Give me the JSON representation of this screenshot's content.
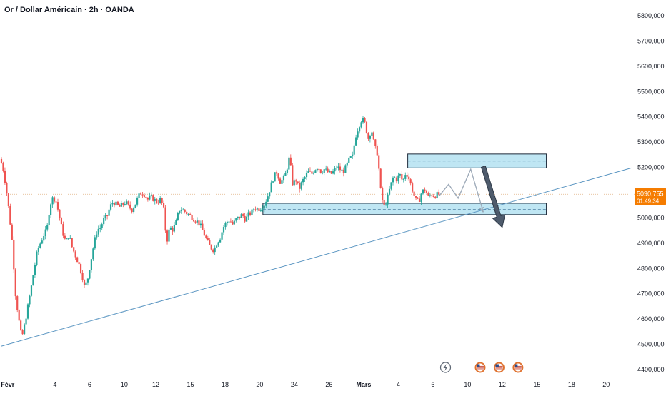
{
  "header": {
    "title": "Or / Dollar Américain · 2h · OANDA"
  },
  "price_label": {
    "value": "5090,755",
    "countdown": "01:49:34"
  },
  "colors": {
    "bull": "#26a69a",
    "bear": "#ef5350",
    "zone_fill": "#bfe6f3",
    "zone_stroke": "#1e2a3a",
    "trendline": "#5b96c2",
    "arrow_light": "#9aa7b6",
    "arrow_dark": "#4e5b6c",
    "axis_text": "#131722",
    "price_badge": "#f57c00"
  },
  "event_icons": [
    "lightning-icon",
    "us-flag-icon",
    "us-flag-icon",
    "us-flag-icon"
  ],
  "chart_data": {
    "type": "candlestick",
    "x_axis": {
      "tick_labels": [
        "Févr",
        "4",
        "6",
        "10",
        "12",
        "15",
        "18",
        "20",
        "24",
        "26",
        "Mars",
        "4",
        "6",
        "10",
        "12",
        "15",
        "18",
        "20"
      ]
    },
    "y_axis": {
      "tick_labels": [
        "5800,000",
        "5700,000",
        "5600,000",
        "5500,000",
        "5400,000",
        "5300,000",
        "5200,000",
        "5100,000",
        "5000,000",
        "4900,000",
        "4800,000",
        "4700,000",
        "4600,000",
        "4500,000",
        "4400,000"
      ],
      "tick_values": [
        5800,
        5700,
        5600,
        5500,
        5400,
        5300,
        5200,
        5100,
        5000,
        4900,
        4800,
        4700,
        4600,
        4500,
        4400
      ],
      "range": [
        4400,
        5800
      ]
    },
    "x_domain": [
      0,
      100
    ],
    "x_tick_positions": [
      1,
      8.5,
      14,
      19.5,
      24.5,
      30,
      35.5,
      41,
      46.5,
      52,
      57.5,
      63,
      68.5,
      74,
      79.5,
      85,
      90.5,
      96
    ],
    "price_anchors": [
      [
        0,
        5230
      ],
      [
        0.5,
        5200
      ],
      [
        1,
        5120
      ],
      [
        1.5,
        5020
      ],
      [
        2,
        4900
      ],
      [
        2.5,
        4700
      ],
      [
        3,
        4600
      ],
      [
        3.5,
        4520
      ],
      [
        4,
        4580
      ],
      [
        4.5,
        4650
      ],
      [
        5,
        4720
      ],
      [
        5.5,
        4800
      ],
      [
        6,
        4870
      ],
      [
        6.5,
        4900
      ],
      [
        7,
        4930
      ],
      [
        7.5,
        4950
      ],
      [
        8,
        5050
      ],
      [
        8.5,
        5080
      ],
      [
        9,
        5060
      ],
      [
        9.5,
        5000
      ],
      [
        10,
        4940
      ],
      [
        10.5,
        4900
      ],
      [
        11,
        4930
      ],
      [
        11.5,
        4880
      ],
      [
        12,
        4850
      ],
      [
        12.5,
        4820
      ],
      [
        13,
        4780
      ],
      [
        13.5,
        4720
      ],
      [
        14,
        4760
      ],
      [
        14.5,
        4830
      ],
      [
        15,
        4900
      ],
      [
        15.5,
        4950
      ],
      [
        16,
        4960
      ],
      [
        16.5,
        4990
      ],
      [
        17,
        5000
      ],
      [
        17.5,
        5040
      ],
      [
        18,
        5060
      ],
      [
        18.5,
        5050
      ],
      [
        19,
        5040
      ],
      [
        19.5,
        5050
      ],
      [
        20,
        5060
      ],
      [
        20.5,
        5040
      ],
      [
        21,
        5030
      ],
      [
        21.5,
        5050
      ],
      [
        22,
        5080
      ],
      [
        22.5,
        5100
      ],
      [
        23,
        5090
      ],
      [
        23.5,
        5070
      ],
      [
        24,
        5080
      ],
      [
        24.5,
        5070
      ],
      [
        25,
        5060
      ],
      [
        25.5,
        5070
      ],
      [
        26,
        5040
      ],
      [
        26.5,
        4900
      ],
      [
        27,
        4960
      ],
      [
        27.5,
        4950
      ],
      [
        28,
        4980
      ],
      [
        28.5,
        5030
      ],
      [
        29,
        5030
      ],
      [
        29.5,
        5020
      ],
      [
        30,
        5010
      ],
      [
        30.5,
        5000
      ],
      [
        31,
        4990
      ],
      [
        31.5,
        4980
      ],
      [
        32,
        4960
      ],
      [
        32.5,
        4930
      ],
      [
        33,
        4900
      ],
      [
        33.5,
        4880
      ],
      [
        34,
        4870
      ],
      [
        34.5,
        4900
      ],
      [
        35,
        4920
      ],
      [
        35.5,
        4960
      ],
      [
        36,
        4980
      ],
      [
        36.5,
        4990
      ],
      [
        37,
        4970
      ],
      [
        37.5,
        4990
      ],
      [
        38,
        5000
      ],
      [
        38.5,
        5010
      ],
      [
        39,
        4990
      ],
      [
        39.5,
        5010
      ],
      [
        40,
        5020
      ],
      [
        40.5,
        5040
      ],
      [
        41,
        5030
      ],
      [
        41.5,
        5040
      ],
      [
        42,
        5050
      ],
      [
        42.5,
        5080
      ],
      [
        43,
        5120
      ],
      [
        43.5,
        5160
      ],
      [
        44,
        5180
      ],
      [
        44.5,
        5140
      ],
      [
        45,
        5150
      ],
      [
        45.5,
        5180
      ],
      [
        46,
        5240
      ],
      [
        46.5,
        5130
      ],
      [
        47,
        5150
      ],
      [
        47.5,
        5110
      ],
      [
        48,
        5140
      ],
      [
        48.5,
        5160
      ],
      [
        49,
        5180
      ],
      [
        49.5,
        5170
      ],
      [
        50,
        5190
      ],
      [
        50.5,
        5200
      ],
      [
        51,
        5180
      ],
      [
        51.5,
        5190
      ],
      [
        52,
        5180
      ],
      [
        52.5,
        5170
      ],
      [
        53,
        5180
      ],
      [
        53.5,
        5200
      ],
      [
        54,
        5190
      ],
      [
        54.5,
        5180
      ],
      [
        55,
        5200
      ],
      [
        55.5,
        5230
      ],
      [
        56,
        5240
      ],
      [
        56.5,
        5320
      ],
      [
        57,
        5360
      ],
      [
        57.5,
        5390
      ],
      [
        58,
        5370
      ],
      [
        58.5,
        5310
      ],
      [
        59,
        5350
      ],
      [
        59.5,
        5280
      ],
      [
        60,
        5250
      ],
      [
        60.5,
        5100
      ],
      [
        61,
        5040
      ],
      [
        61.5,
        5070
      ],
      [
        62,
        5120
      ],
      [
        62.5,
        5160
      ],
      [
        63,
        5150
      ],
      [
        63.5,
        5170
      ],
      [
        64,
        5140
      ],
      [
        64.5,
        5180
      ],
      [
        65,
        5150
      ],
      [
        65.5,
        5110
      ],
      [
        66,
        5070
      ],
      [
        66.5,
        5060
      ],
      [
        67,
        5100
      ],
      [
        67.5,
        5110
      ],
      [
        68,
        5080
      ],
      [
        68.5,
        5090
      ],
      [
        69,
        5085
      ],
      [
        69.5,
        5090
      ]
    ],
    "zones": [
      {
        "name": "resistance-zone",
        "x_start": 64.5,
        "x_end": 86.5,
        "y_low": 5195,
        "y_high": 5250,
        "mid": 5222
      },
      {
        "name": "support-zone",
        "x_start": 41.5,
        "x_end": 86.5,
        "y_low": 5010,
        "y_high": 5055,
        "mid": 5030
      }
    ],
    "trendline": {
      "from": [
        0,
        4490
      ],
      "to": [
        100,
        5195
      ]
    },
    "current_price_line": 5090.755,
    "projection_path": [
      [
        69.5,
        5085
      ],
      [
        71,
        5130
      ],
      [
        72.5,
        5075
      ],
      [
        74.5,
        5190
      ],
      [
        76.5,
        5020
      ]
    ],
    "projection_arrow": {
      "from": [
        76.5,
        5200
      ],
      "to": [
        79.5,
        4960
      ]
    },
    "event_x": [
      70.5,
      76.0,
      79.0,
      82.0
    ]
  }
}
